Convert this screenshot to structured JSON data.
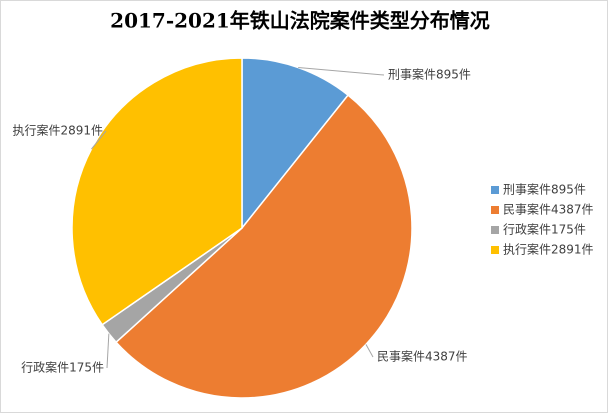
{
  "chart_data": {
    "type": "pie",
    "title": "2017-2021年铁山法院案件类型分布情况",
    "categories": [
      "刑事案件895件",
      "民事案件4387件",
      "行政案件175件",
      "执行案件2891件"
    ],
    "values": [
      895,
      4387,
      175,
      2891
    ],
    "colors": [
      "#5b9bd5",
      "#ed7d31",
      "#a5a5a5",
      "#ffc000"
    ],
    "legend": "right"
  }
}
